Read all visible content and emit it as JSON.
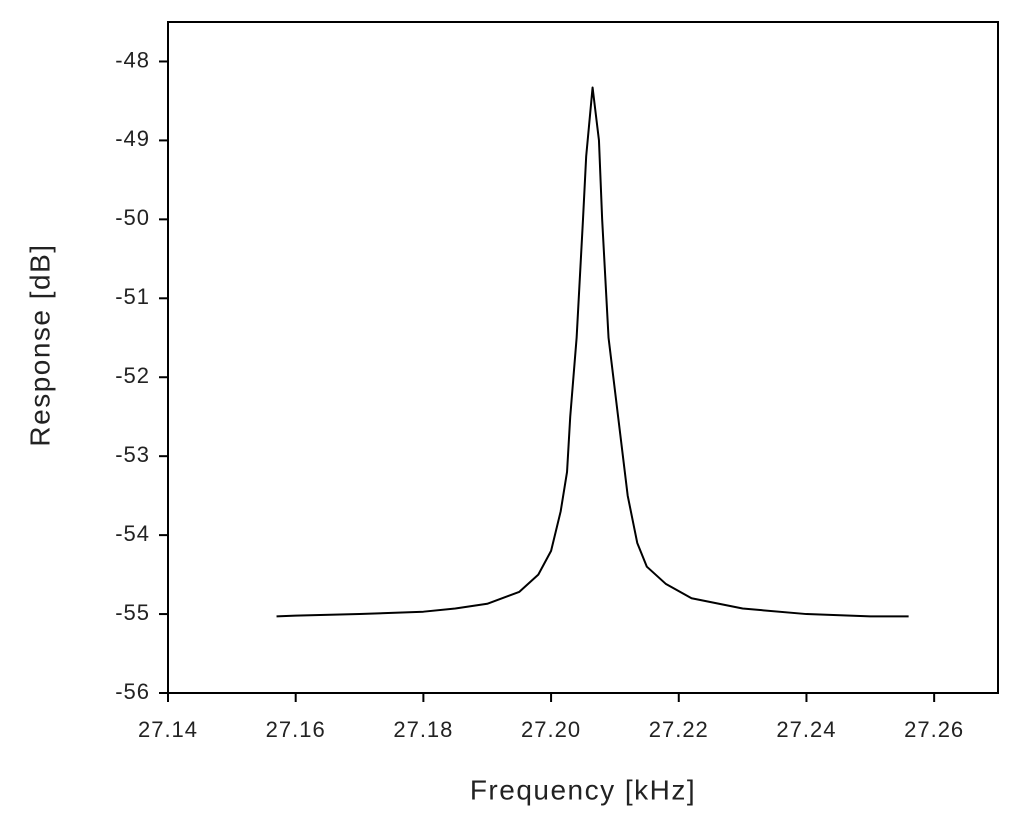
{
  "chart_data": {
    "type": "line",
    "xlabel": "Frequency [kHz]",
    "ylabel": "Response [dB]",
    "xlim": [
      27.14,
      27.27
    ],
    "ylim": [
      -56,
      -47.5
    ],
    "xticks": [
      27.14,
      27.16,
      27.18,
      {
        "value": 27.2,
        "label": "27.20"
      },
      27.22,
      27.24,
      27.26
    ],
    "yticks": [
      -56,
      -55,
      -54,
      -53,
      -52,
      -51,
      -50,
      -49,
      -48
    ],
    "grid": false,
    "series": [
      {
        "color": "#000000",
        "x": [
          27.157,
          27.16,
          27.17,
          27.18,
          27.185,
          27.19,
          27.195,
          27.198,
          27.2,
          27.2015,
          27.2025,
          27.203,
          27.204,
          27.205,
          27.2055,
          27.2065,
          27.2075,
          27.208,
          27.209,
          27.2105,
          27.212,
          27.2135,
          27.215,
          27.218,
          27.222,
          27.23,
          27.24,
          27.25,
          27.256
        ],
        "values": [
          -55.03,
          -55.02,
          -55.0,
          -54.97,
          -54.93,
          -54.87,
          -54.72,
          -54.5,
          -54.2,
          -53.7,
          -53.2,
          -52.5,
          -51.5,
          -50.0,
          -49.2,
          -48.33,
          -49.0,
          -50.0,
          -51.5,
          -52.5,
          -53.5,
          -54.1,
          -54.4,
          -54.62,
          -54.8,
          -54.93,
          -55.0,
          -55.03,
          -55.03
        ]
      }
    ]
  }
}
